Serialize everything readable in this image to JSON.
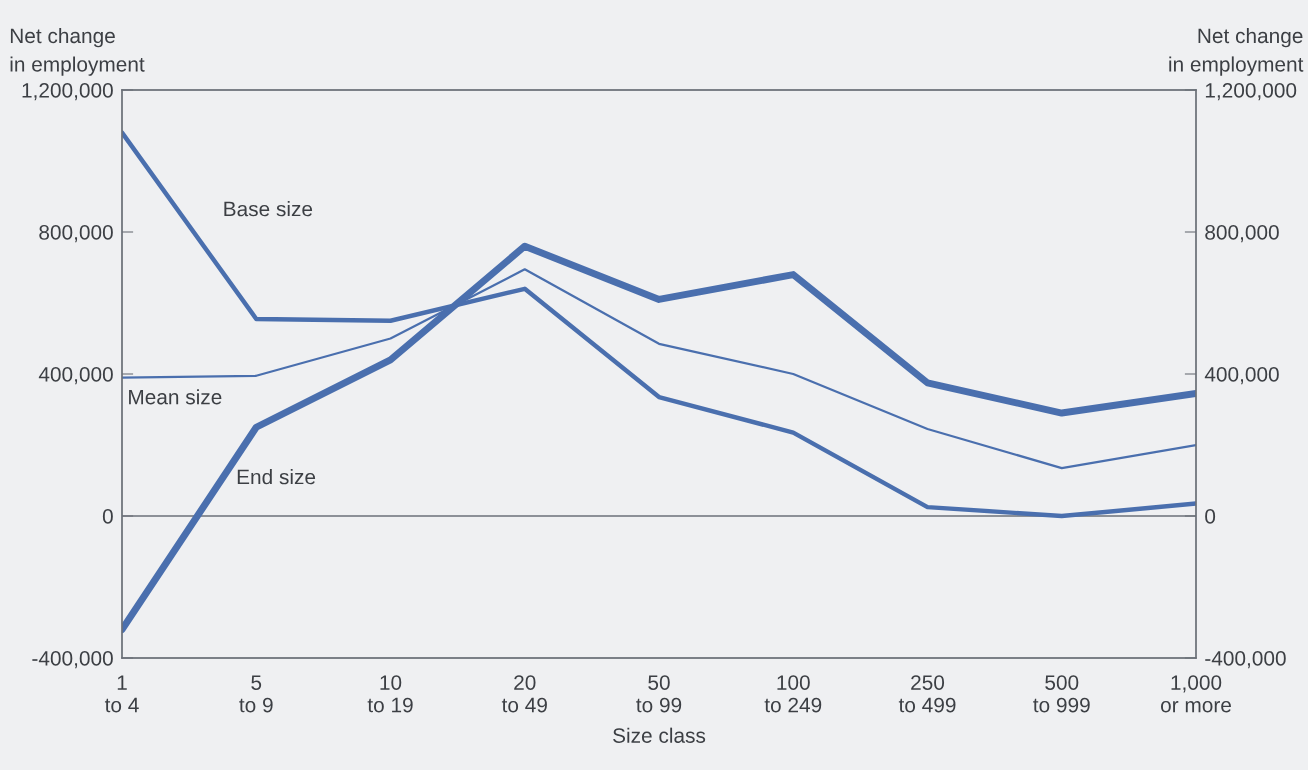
{
  "chart_data": {
    "type": "line",
    "ylabel": "Net change\nin employment",
    "y2label": "Net change\nin employment",
    "xlabel": "Size class",
    "categories": [
      "1\nto 4",
      "5\nto 9",
      "10\nto 19",
      "20\nto 49",
      "50\nto 99",
      "100\nto 249",
      "250\nto 499",
      "500\nto 999",
      "1,000\nor more"
    ],
    "series": [
      {
        "name": "Base size",
        "color": "#4a6fae",
        "values": [
          1080000,
          555000,
          550000,
          640000,
          335000,
          235000,
          25000,
          0,
          35000
        ]
      },
      {
        "name": "Mean size",
        "color": "#4a6fae",
        "values": [
          390000,
          395000,
          500000,
          695000,
          485000,
          400000,
          245000,
          135000,
          200000
        ]
      },
      {
        "name": "End size",
        "color": "#4a6fae",
        "values": [
          -320000,
          250000,
          440000,
          760000,
          610000,
          680000,
          375000,
          290000,
          345000
        ]
      }
    ],
    "ylim": [
      -400000,
      1200000
    ],
    "yticks": [
      {
        "value": -400000,
        "label": "-400,000"
      },
      {
        "value": 0,
        "label": "0"
      },
      {
        "value": 400000,
        "label": "400,000"
      },
      {
        "value": 800000,
        "label": "800,000"
      },
      {
        "value": 1200000,
        "label": "1,200,000"
      }
    ],
    "y2lim": [
      -400000,
      1200000
    ],
    "y2ticks": [
      {
        "value": -400000,
        "label": "-400,000"
      },
      {
        "value": 0,
        "label": "0"
      },
      {
        "value": 400000,
        "label": "400,000"
      },
      {
        "value": 800000,
        "label": "800,000"
      },
      {
        "value": 1200000,
        "label": "1,200,000"
      }
    ],
    "ref_lines": [
      {
        "axis": "y",
        "value": 0,
        "color": "#6b7078"
      }
    ],
    "grid": false,
    "legend": false,
    "marker": "none",
    "line_style": "solid"
  }
}
